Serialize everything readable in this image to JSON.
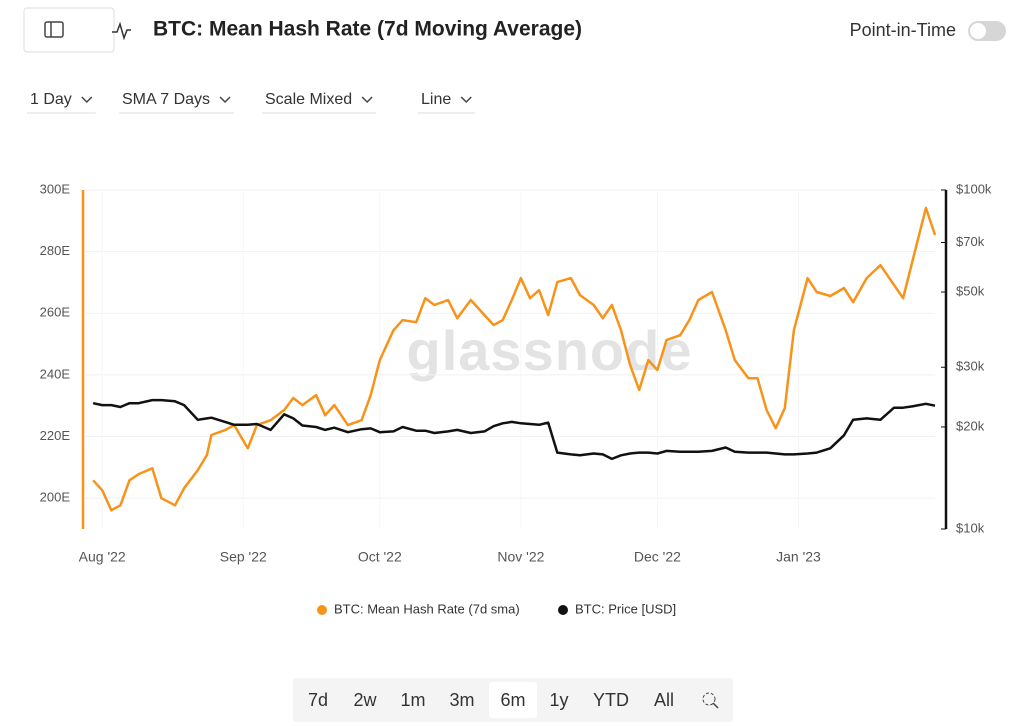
{
  "ui": {
    "title": "BTC: Mean Hash Rate (7d Moving Average)",
    "toggle_label": "Point-in-Time",
    "dropdowns": [
      "1 Day",
      "SMA 7 Days",
      "Scale Mixed",
      "Line"
    ],
    "ranges": [
      "7d",
      "2w",
      "1m",
      "3m",
      "6m",
      "1y",
      "YTD",
      "All"
    ],
    "selected_range": "6m"
  },
  "chart_data": {
    "type": "line",
    "watermark": "glassnode",
    "x": [
      2,
      4,
      6,
      8,
      10,
      12,
      15,
      17,
      20,
      22,
      25,
      27,
      28,
      31,
      33,
      36,
      38,
      41,
      44,
      46,
      48,
      51,
      53,
      55,
      58,
      61,
      63,
      65,
      68,
      70,
      73,
      75,
      77,
      80,
      82,
      85,
      88,
      90,
      92,
      94,
      96,
      98,
      100,
      102,
      104,
      107,
      109,
      112,
      114,
      116,
      118,
      120,
      122,
      124,
      126,
      128,
      131,
      133,
      135,
      138,
      141,
      143,
      146,
      148,
      150,
      152,
      154,
      156,
      159,
      161,
      164,
      167,
      169,
      172,
      175,
      178,
      180,
      182,
      185,
      187
    ],
    "xlim": [
      0,
      187
    ],
    "xticks": [
      {
        "value": 4,
        "label": "Aug '22"
      },
      {
        "value": 35,
        "label": "Sep '22"
      },
      {
        "value": 65,
        "label": "Oct '22"
      },
      {
        "value": 96,
        "label": "Nov '22"
      },
      {
        "value": 126,
        "label": "Dec '22"
      },
      {
        "value": 157,
        "label": "Jan '23"
      }
    ],
    "ylim": [
      190,
      300
    ],
    "yticks": [
      {
        "value": 200,
        "label": "200E"
      },
      {
        "value": 220,
        "label": "220E"
      },
      {
        "value": 240,
        "label": "240E"
      },
      {
        "value": 260,
        "label": "260E"
      },
      {
        "value": 280,
        "label": "280E"
      },
      {
        "value": 300,
        "label": "300E"
      }
    ],
    "y2lim": [
      10000,
      100000
    ],
    "y2scale": "log",
    "y2ticks": [
      {
        "value": 10000,
        "label": "$10k"
      },
      {
        "value": 20000,
        "label": "$20k"
      },
      {
        "value": 30000,
        "label": "$30k"
      },
      {
        "value": 50000,
        "label": "$50k"
      },
      {
        "value": 70000,
        "label": "$70k"
      },
      {
        "value": 100000,
        "label": "$100k"
      }
    ],
    "grid": true,
    "series": [
      {
        "name": "BTC: Mean Hash Rate (7d sma)",
        "color": "#f7931a",
        "axis": "y",
        "values": [
          205.8,
          202.6,
          196.1,
          197.7,
          205.8,
          207.8,
          209.7,
          200,
          197.7,
          203.2,
          209.1,
          214,
          220.5,
          222.1,
          223.7,
          216.2,
          223.7,
          225.3,
          228.6,
          232.5,
          230.2,
          233.4,
          226.9,
          230.2,
          223.7,
          225.3,
          233.4,
          244.8,
          254.5,
          257.8,
          257.1,
          264.9,
          262.7,
          264.3,
          258.4,
          264.3,
          259.4,
          256.2,
          257.8,
          264.3,
          271.4,
          264.9,
          267.5,
          259.4,
          270.1,
          271.4,
          265.9,
          262.7,
          258.4,
          262.7,
          254.5,
          243.2,
          235.1,
          244.8,
          241.6,
          251.3,
          252.9,
          257.8,
          264.3,
          266.9,
          254.5,
          244.8,
          238.9,
          238.9,
          228.6,
          222.7,
          229.2,
          254.5,
          271.4,
          266.9,
          265.6,
          268.2,
          263.6,
          271.4,
          275.6,
          269.2,
          264.9,
          276.6,
          294.2,
          285.4
        ]
      },
      {
        "name": "BTC: Price [USD]",
        "color": "#111111",
        "axis": "y2",
        "values": [
          23500,
          23200,
          23200,
          22900,
          23500,
          23500,
          24000,
          24000,
          23800,
          23200,
          21000,
          21200,
          21300,
          20700,
          20300,
          20300,
          20400,
          19600,
          21800,
          21200,
          20200,
          20000,
          19600,
          19900,
          19300,
          19700,
          19800,
          19300,
          19400,
          20000,
          19500,
          19500,
          19200,
          19400,
          19600,
          19200,
          19400,
          20100,
          20500,
          20700,
          20500,
          20400,
          20300,
          20600,
          16800,
          16600,
          16500,
          16700,
          16600,
          16100,
          16500,
          16700,
          16800,
          16800,
          16700,
          17000,
          16900,
          16900,
          16900,
          17000,
          17400,
          16900,
          16800,
          16800,
          16800,
          16700,
          16600,
          16600,
          16700,
          16800,
          17300,
          18900,
          21000,
          21200,
          21000,
          22800,
          22800,
          23000,
          23400,
          23100
        ]
      }
    ]
  }
}
